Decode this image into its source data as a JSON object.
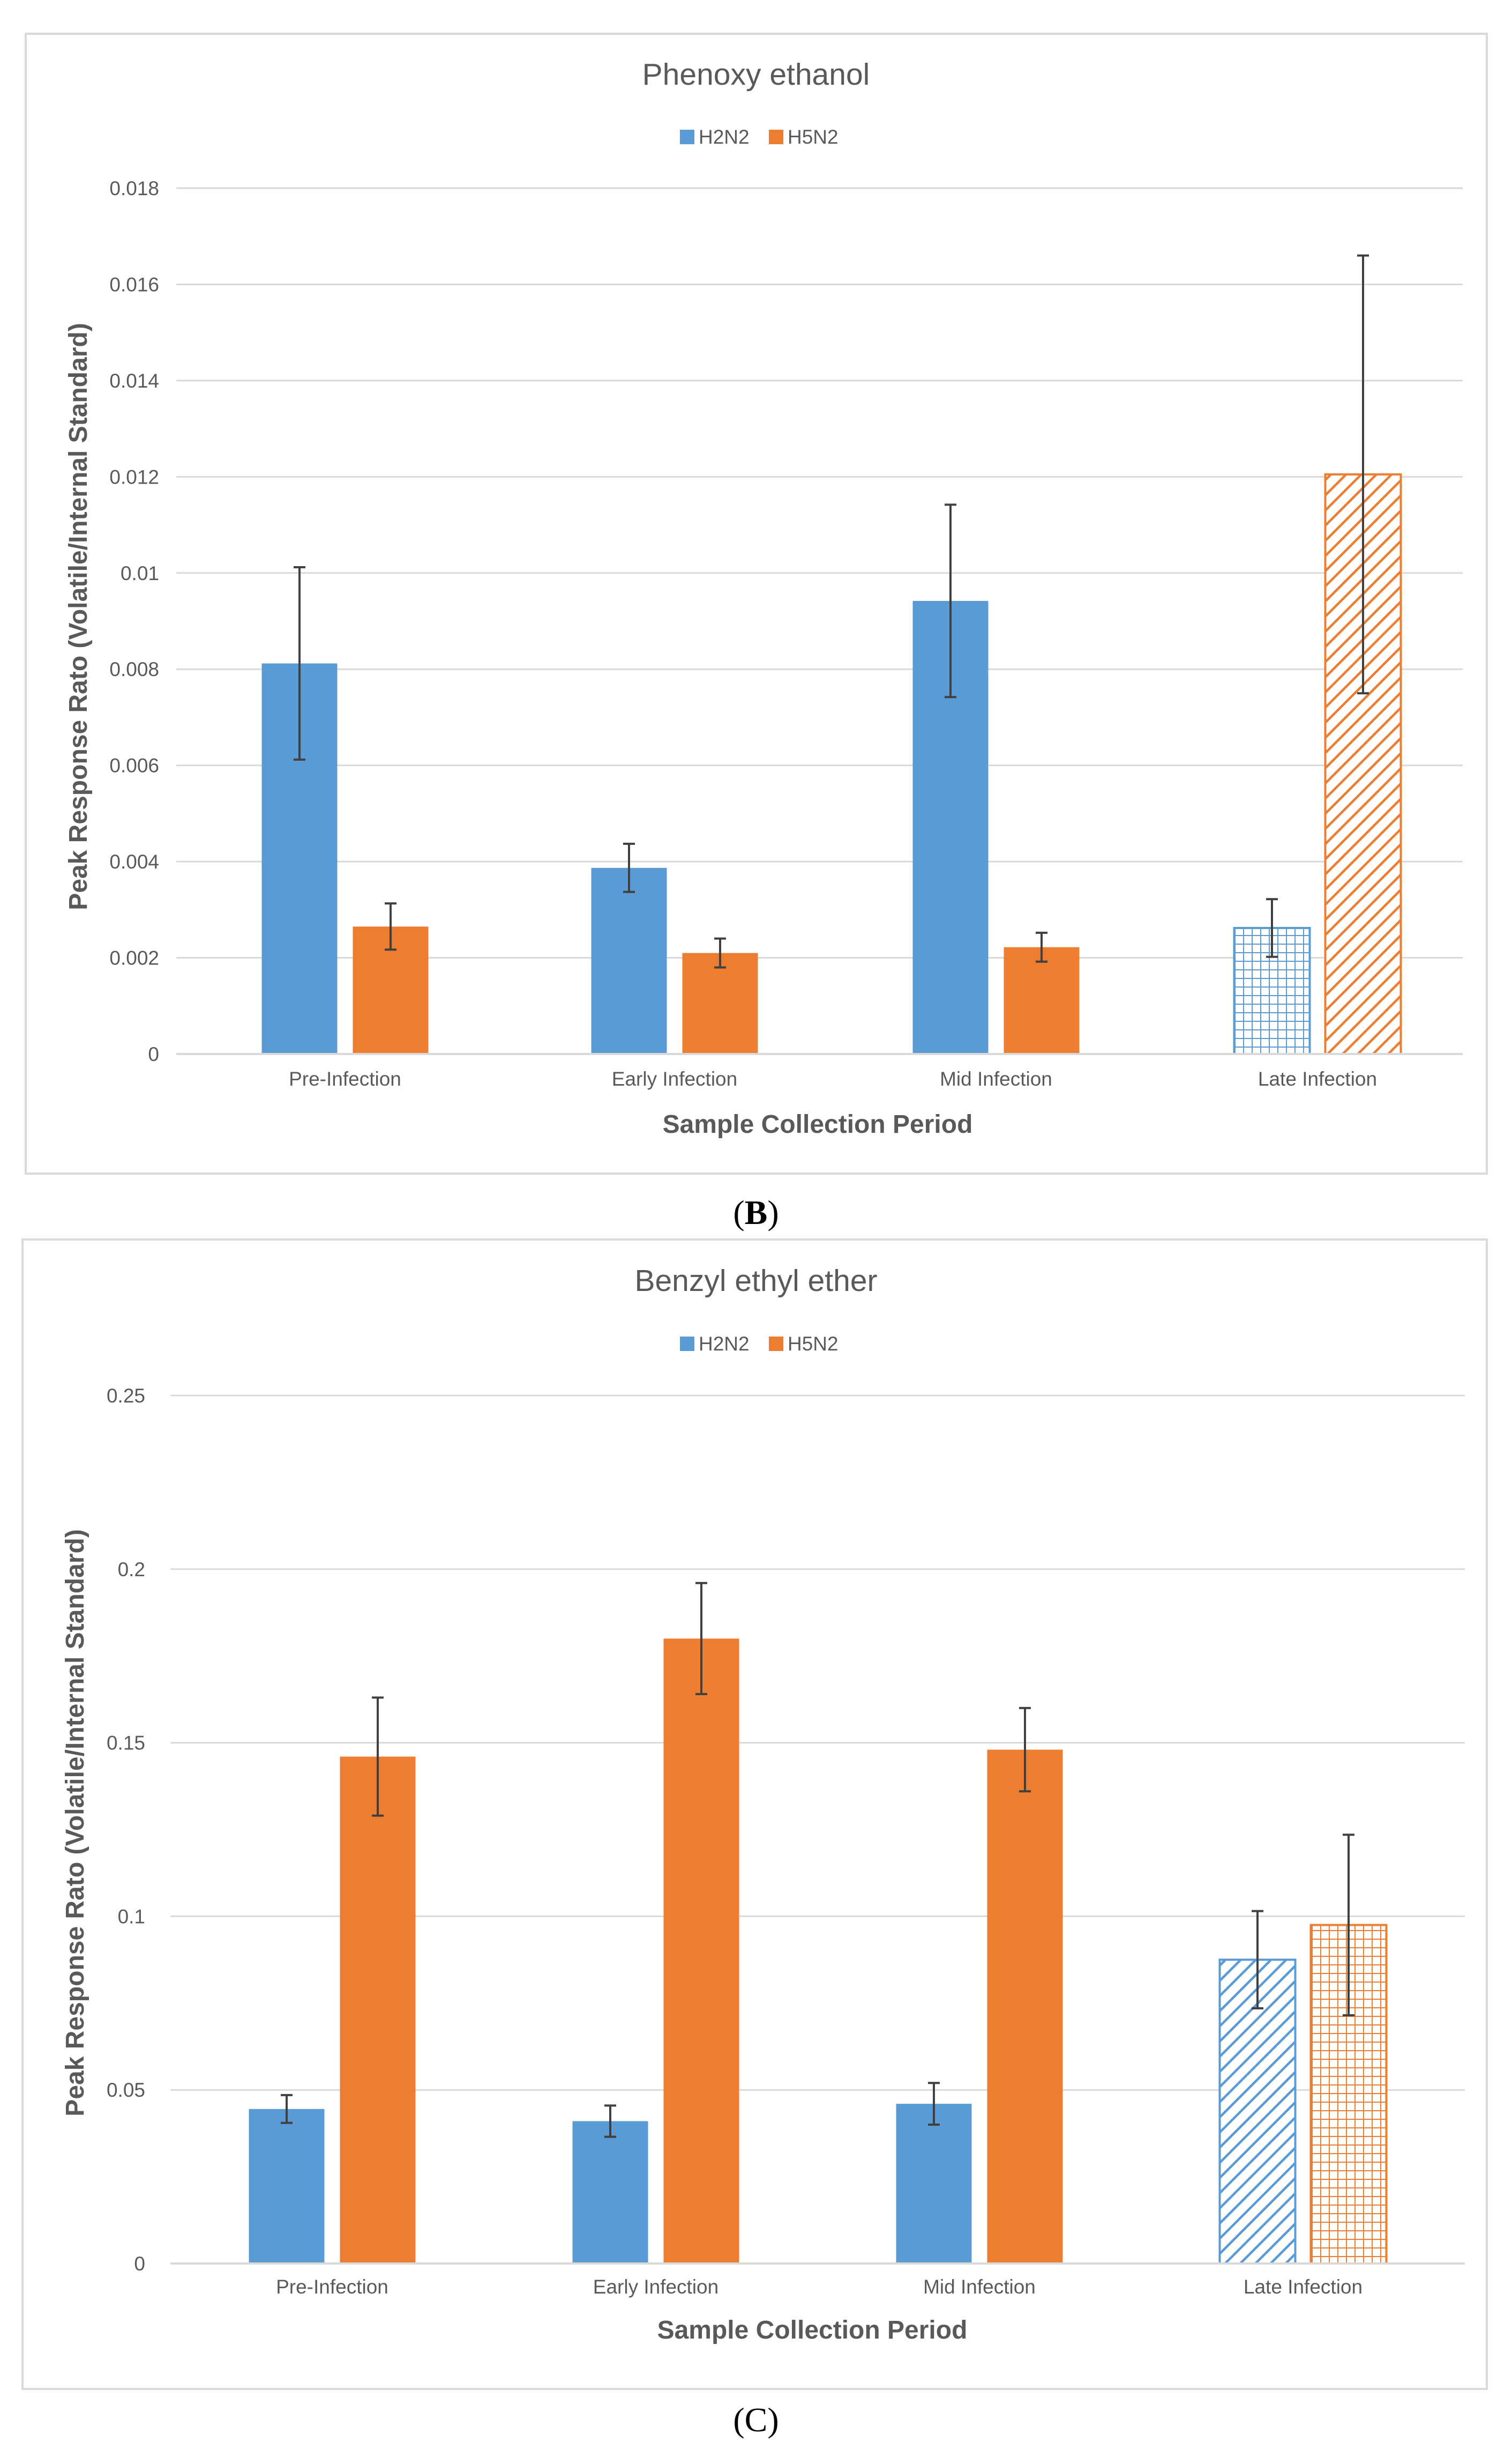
{
  "colors": {
    "h2n2": "#5b9bd5",
    "h5n2": "#ed7d31",
    "grid": "#d9d9d9",
    "text": "#595959",
    "error_bar": "#404040"
  },
  "panels": [
    {
      "label": "B"
    },
    {
      "label": "C"
    }
  ],
  "chart_data": [
    {
      "type": "bar",
      "title": "Phenoxy ethanol",
      "xlabel": "Sample Collection Period",
      "ylabel": "Peak Response Rato (Volatile/Internal Standard)",
      "categories": [
        "Pre-Infection",
        "Early Infection",
        "Mid Infection",
        "Late Infection"
      ],
      "ylim": [
        0,
        0.018
      ],
      "yticks": [
        "0",
        "0.002",
        "0.004",
        "0.006",
        "0.008",
        "0.01",
        "0.012",
        "0.014",
        "0.016",
        "0.018"
      ],
      "legend_position": "top-center",
      "series": [
        {
          "name": "H2N2",
          "color": "#5b9bd5",
          "values": [
            0.00812,
            0.00387,
            0.00942,
            0.00262
          ],
          "errors": [
            0.002,
            0.0005,
            0.002,
            0.0006
          ],
          "fills": [
            "solid",
            "solid",
            "solid",
            "grid"
          ]
        },
        {
          "name": "H5N2",
          "color": "#ed7d31",
          "values": [
            0.00265,
            0.0021,
            0.00222,
            0.01205
          ],
          "errors": [
            0.00048,
            0.0003,
            0.0003,
            0.00455
          ],
          "fills": [
            "solid",
            "solid",
            "solid",
            "hatch"
          ]
        }
      ]
    },
    {
      "type": "bar",
      "title": "Benzyl ethyl ether",
      "xlabel": "Sample Collection Period",
      "ylabel": "Peak Response Rato (Volatile/Internal Standard)",
      "categories": [
        "Pre-Infection",
        "Early Infection",
        "Mid Infection",
        "Late Infection"
      ],
      "ylim": [
        0,
        0.25
      ],
      "yticks": [
        "0",
        "0.05",
        "0.1",
        "0.15",
        "0.2",
        "0.25"
      ],
      "legend_position": "top-center",
      "series": [
        {
          "name": "H2N2",
          "color": "#5b9bd5",
          "values": [
            0.0445,
            0.041,
            0.046,
            0.0875
          ],
          "errors": [
            0.004,
            0.0045,
            0.006,
            0.014
          ],
          "fills": [
            "solid",
            "solid",
            "solid",
            "hatch"
          ]
        },
        {
          "name": "H5N2",
          "color": "#ed7d31",
          "values": [
            0.146,
            0.18,
            0.148,
            0.0975
          ],
          "errors": [
            0.017,
            0.016,
            0.012,
            0.026
          ],
          "fills": [
            "solid",
            "solid",
            "solid",
            "grid"
          ]
        }
      ]
    }
  ]
}
